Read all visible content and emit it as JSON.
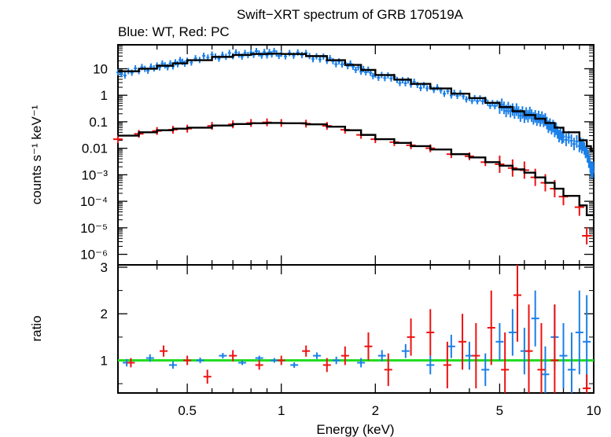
{
  "title": "Swift−XRT spectrum of GRB 170519A",
  "subtitle": "Blue: WT, Red: PC",
  "colors": {
    "wt": "#1a7fe8",
    "pc": "#ee1111",
    "model": "#000000",
    "unity": "#22dd22"
  },
  "chart_data": [
    {
      "type": "scatter",
      "panel": "spectrum",
      "xlabel": "Energy (keV)",
      "ylabel": "counts s⁻¹ keV⁻¹",
      "xscale": "log",
      "yscale": "log",
      "xlim": [
        0.3,
        10
      ],
      "ylim": [
        4e-07,
        80
      ],
      "ytick_labels": [
        "10",
        "1",
        "0.1",
        "0.01",
        "10⁻³",
        "10⁻⁴",
        "10⁻⁵",
        "10⁻⁶"
      ],
      "series": [
        {
          "name": "WT",
          "x": [
            0.3,
            0.35,
            0.4,
            0.45,
            0.5,
            0.6,
            0.7,
            0.8,
            0.9,
            1.0,
            1.2,
            1.4,
            1.6,
            1.8,
            2.0,
            2.3,
            2.6,
            3.0,
            3.5,
            4.0,
            4.5,
            5.0,
            5.5,
            6.0,
            6.5,
            7.0,
            7.5,
            8.0,
            9.0,
            9.5,
            9.8
          ],
          "values": [
            6,
            9,
            12,
            15,
            20,
            28,
            33,
            37,
            39,
            37,
            32,
            22,
            15,
            9.5,
            6,
            4,
            2.8,
            1.9,
            1.2,
            0.8,
            0.55,
            0.38,
            0.26,
            0.19,
            0.16,
            0.1,
            0.05,
            0.025,
            0.015,
            0.008,
            0.0015
          ]
        },
        {
          "name": "PC",
          "x": [
            0.3,
            0.35,
            0.4,
            0.45,
            0.5,
            0.6,
            0.7,
            0.8,
            0.9,
            1.0,
            1.2,
            1.4,
            1.6,
            1.8,
            2.0,
            2.3,
            2.6,
            3.0,
            3.5,
            4.0,
            4.5,
            5.0,
            5.5,
            6.0,
            6.5,
            7.0,
            7.5,
            8.0,
            9.0,
            9.5
          ],
          "values": [
            0.022,
            0.035,
            0.045,
            0.05,
            0.055,
            0.07,
            0.08,
            0.09,
            0.095,
            0.09,
            0.085,
            0.07,
            0.05,
            0.032,
            0.022,
            0.017,
            0.013,
            0.01,
            0.006,
            0.005,
            0.003,
            0.0025,
            0.0018,
            0.0015,
            0.0008,
            0.0005,
            0.0003,
            0.00015,
            6e-05,
            5e-06
          ]
        },
        {
          "name": "model",
          "x": [
            0.3,
            0.35,
            0.4,
            0.45,
            0.5,
            0.6,
            0.7,
            0.8,
            0.9,
            1.0,
            1.2,
            1.4,
            1.6,
            1.8,
            2.0,
            2.3,
            2.6,
            3.0,
            3.5,
            4.0,
            4.5,
            5.0,
            5.5,
            6.0,
            6.5,
            7.0,
            7.5,
            8.0,
            9.0,
            9.5,
            9.8
          ],
          "values": [
            8,
            10,
            13,
            16,
            21,
            28,
            33,
            36,
            37,
            36,
            30,
            21,
            14,
            9,
            5.8,
            3.9,
            2.7,
            1.8,
            1.15,
            0.78,
            0.52,
            0.36,
            0.25,
            0.18,
            0.13,
            0.09,
            0.06,
            0.04,
            0.02,
            0.012,
            0.008
          ]
        },
        {
          "name": "model-pc",
          "x": [
            0.3,
            0.35,
            0.4,
            0.45,
            0.5,
            0.6,
            0.7,
            0.8,
            0.9,
            1.0,
            1.2,
            1.4,
            1.6,
            1.8,
            2.0,
            2.3,
            2.6,
            3.0,
            3.5,
            4.0,
            4.5,
            5.0,
            5.5,
            6.0,
            6.5,
            7.0,
            7.5,
            8.0,
            9.0,
            9.5
          ],
          "values": [
            0.03,
            0.04,
            0.048,
            0.055,
            0.06,
            0.072,
            0.082,
            0.088,
            0.09,
            0.088,
            0.08,
            0.065,
            0.048,
            0.032,
            0.022,
            0.016,
            0.012,
            0.009,
            0.006,
            0.0045,
            0.003,
            0.0022,
            0.0016,
            0.0012,
            0.0008,
            0.0005,
            0.0003,
            0.00016,
            7e-05,
            3e-05
          ]
        }
      ]
    },
    {
      "type": "scatter",
      "panel": "ratio",
      "xlabel": "Energy (keV)",
      "ylabel": "ratio",
      "xscale": "log",
      "xlim": [
        0.3,
        10
      ],
      "ylim": [
        0.3,
        3.05
      ],
      "xtick_labels": [
        "0.5",
        "1",
        "2",
        "5",
        "10"
      ],
      "ytick_labels": [
        "1",
        "2",
        "3"
      ],
      "reference_line": 1,
      "series": [
        {
          "name": "WT",
          "x": [
            0.32,
            0.38,
            0.45,
            0.55,
            0.65,
            0.75,
            0.85,
            0.95,
            1.1,
            1.3,
            1.5,
            1.8,
            2.1,
            2.5,
            3.0,
            3.5,
            4.0,
            4.5,
            5.0,
            5.5,
            6.0,
            6.5,
            7.0,
            7.5,
            8.0,
            8.5,
            9.0,
            9.5
          ],
          "values": [
            0.95,
            1.05,
            0.9,
            1.0,
            1.1,
            0.95,
            1.05,
            1.0,
            0.9,
            1.1,
            1.0,
            0.95,
            1.1,
            1.2,
            0.9,
            1.3,
            1.1,
            0.8,
            1.4,
            1.6,
            1.2,
            1.9,
            0.7,
            1.5,
            1.1,
            0.8,
            1.6,
            1.4
          ],
          "errors": [
            0.08,
            0.08,
            0.08,
            0.06,
            0.06,
            0.05,
            0.05,
            0.05,
            0.06,
            0.07,
            0.08,
            0.1,
            0.12,
            0.15,
            0.2,
            0.25,
            0.3,
            0.35,
            0.4,
            0.5,
            0.5,
            0.6,
            0.6,
            0.7,
            0.7,
            0.8,
            0.9,
            1.0
          ]
        },
        {
          "name": "PC",
          "x": [
            0.33,
            0.42,
            0.5,
            0.58,
            0.7,
            0.85,
            1.0,
            1.2,
            1.4,
            1.6,
            1.9,
            2.2,
            2.6,
            3.0,
            3.4,
            3.8,
            4.2,
            4.7,
            5.2,
            5.7,
            6.2,
            6.8,
            7.5,
            9.5
          ],
          "values": [
            0.95,
            1.2,
            1.0,
            0.65,
            1.1,
            0.9,
            1.0,
            1.2,
            0.9,
            1.1,
            1.3,
            0.8,
            1.5,
            1.6,
            0.9,
            1.4,
            1.1,
            1.7,
            0.8,
            2.4,
            1.2,
            0.8,
            1.0,
            0.4
          ],
          "errors": [
            0.1,
            0.12,
            0.1,
            0.15,
            0.12,
            0.1,
            0.1,
            0.12,
            0.15,
            0.2,
            0.3,
            0.35,
            0.4,
            0.5,
            0.5,
            0.6,
            0.7,
            0.8,
            0.8,
            1.0,
            1.0,
            1.0,
            1.2,
            0.3
          ]
        }
      ]
    }
  ]
}
